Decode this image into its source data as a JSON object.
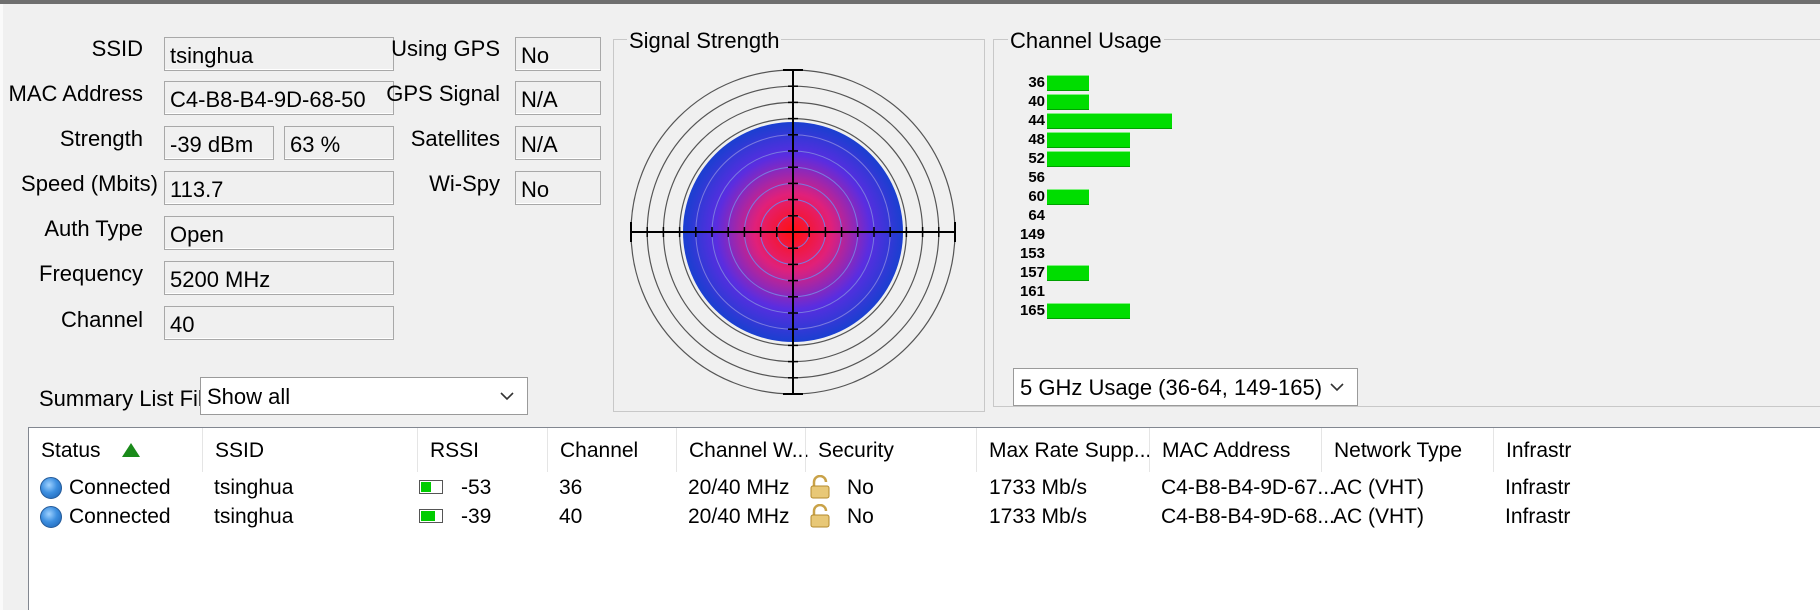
{
  "info": {
    "ssid_label": "SSID",
    "ssid": "tsinghua",
    "mac_label": "MAC Address",
    "mac": "C4-B8-B4-9D-68-50",
    "strength_label": "Strength",
    "strength_dbm": "-39 dBm",
    "strength_pct": "63 %",
    "speed_label": "Speed (Mbits)",
    "speed": "113.7",
    "auth_label": "Auth Type",
    "auth": "Open",
    "freq_label": "Frequency",
    "freq": "5200 MHz",
    "channel_label": "Channel",
    "channel": "40",
    "gps_label": "Using GPS",
    "gps": "No",
    "gps_signal_label": "GPS Signal",
    "gps_signal": "N/A",
    "satellites_label": "Satellites",
    "satellites": "N/A",
    "wispy_label": "Wi-Spy",
    "wispy": "No"
  },
  "filter": {
    "label": "Summary List Filter:",
    "value": "Show all"
  },
  "signal": {
    "title": "Signal Strength"
  },
  "usage": {
    "title": "Channel Usage",
    "dropdown": "5 GHz Usage (36-64, 149-165)",
    "channels": [
      {
        "ch": "36",
        "level": 1
      },
      {
        "ch": "40",
        "level": 1
      },
      {
        "ch": "44",
        "level": 3
      },
      {
        "ch": "48",
        "level": 2
      },
      {
        "ch": "52",
        "level": 2
      },
      {
        "ch": "56",
        "level": 0
      },
      {
        "ch": "60",
        "level": 1
      },
      {
        "ch": "64",
        "level": 0
      },
      {
        "ch": "149",
        "level": 0
      },
      {
        "ch": "153",
        "level": 0
      },
      {
        "ch": "157",
        "level": 1
      },
      {
        "ch": "161",
        "level": 0
      },
      {
        "ch": "165",
        "level": 2
      }
    ]
  },
  "table": {
    "columns": [
      "Status",
      "SSID",
      "RSSI",
      "Channel",
      "Channel W...",
      "Security",
      "Max Rate Supp...",
      "MAC Address",
      "Network Type",
      "Infrastr"
    ],
    "rows": [
      {
        "status": "Connected",
        "ssid": "tsinghua",
        "rssi": "-53",
        "rssi_fill": 0.45,
        "channel": "36",
        "width": "20/40 MHz",
        "security": "No",
        "max_rate": "1733 Mb/s",
        "mac": "C4-B8-B4-9D-67...",
        "net_type": "AC (VHT)",
        "infra": "Infrastr"
      },
      {
        "status": "Connected",
        "ssid": "tsinghua",
        "rssi": "-39",
        "rssi_fill": 0.65,
        "channel": "40",
        "width": "20/40 MHz",
        "security": "No",
        "max_rate": "1733 Mb/s",
        "mac": "C4-B8-B4-9D-68...",
        "net_type": "AC (VHT)",
        "infra": "Infrastr"
      }
    ]
  },
  "colors": {
    "bar": "#00dd00",
    "radar_outer": "#1a3fd0",
    "radar_center": "#ff1010"
  }
}
